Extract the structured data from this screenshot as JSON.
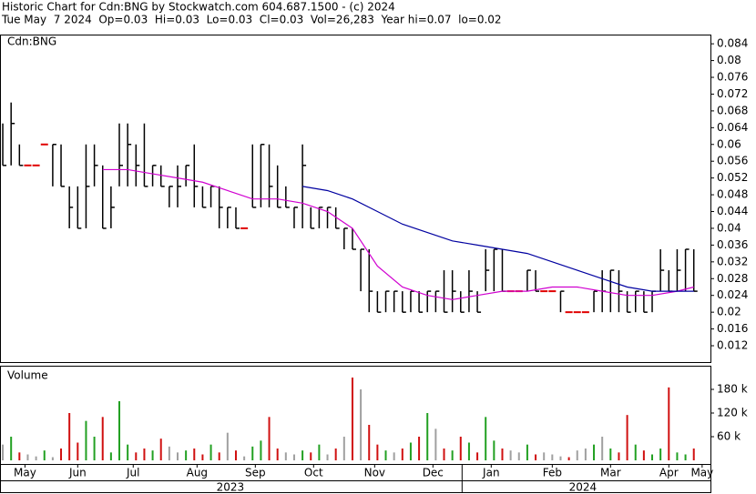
{
  "header": {
    "line1": "Historic Chart for Cdn:BNG by Stockwatch.com 604.687.1500 - (c) 2024",
    "line2": "Tue May  7 2024  Op=0.03  Hi=0.03  Lo=0.03  Cl=0.03  Vol=26,283  Year hi=0.07  lo=0.02"
  },
  "chart_data": [
    {
      "type": "hlc",
      "title": "Cdn:BNG",
      "x": [
        0,
        3,
        6,
        9,
        12,
        15,
        18,
        21,
        24,
        27,
        30,
        33,
        36,
        39,
        42,
        45,
        48,
        51,
        54,
        57,
        60,
        63,
        66,
        69,
        72,
        75,
        78,
        81,
        84,
        87,
        90,
        93,
        96,
        99,
        102,
        105,
        108,
        111,
        114,
        117,
        120,
        123,
        126,
        129,
        132,
        135,
        138,
        141,
        144,
        147,
        150,
        153,
        156,
        159,
        162,
        165,
        168,
        171,
        174,
        177,
        180,
        183,
        186,
        189,
        192,
        195,
        198,
        201,
        204,
        207,
        210,
        213,
        216,
        219,
        222,
        225,
        228,
        231,
        234,
        237,
        240,
        243,
        246,
        249
      ],
      "high": [
        0.065,
        0.07,
        0.06,
        0.055,
        0.055,
        0.06,
        0.06,
        0.06,
        0.05,
        0.05,
        0.06,
        0.06,
        0.055,
        0.05,
        0.065,
        0.065,
        0.06,
        0.065,
        0.055,
        0.055,
        0.05,
        0.055,
        0.055,
        0.06,
        0.05,
        0.05,
        0.05,
        0.045,
        0.045,
        0.04,
        0.06,
        0.06,
        0.06,
        0.055,
        0.05,
        0.045,
        0.06,
        0.045,
        0.045,
        0.045,
        0.045,
        0.04,
        0.04,
        0.035,
        0.035,
        0.025,
        0.025,
        0.025,
        0.025,
        0.025,
        0.025,
        0.025,
        0.025,
        0.03,
        0.03,
        0.025,
        0.03,
        0.025,
        0.035,
        0.035,
        0.035,
        0.025,
        0.025,
        0.03,
        0.03,
        0.025,
        0.025,
        0.025,
        0.02,
        0.02,
        0.02,
        0.025,
        0.03,
        0.03,
        0.03,
        0.025,
        0.025,
        0.025,
        0.025,
        0.035,
        0.03,
        0.035,
        0.035,
        0.035
      ],
      "low": [
        0.055,
        0.055,
        0.055,
        0.055,
        0.055,
        0.06,
        0.05,
        0.05,
        0.04,
        0.04,
        0.04,
        0.05,
        0.04,
        0.04,
        0.05,
        0.05,
        0.05,
        0.05,
        0.05,
        0.05,
        0.045,
        0.045,
        0.05,
        0.045,
        0.045,
        0.045,
        0.04,
        0.04,
        0.04,
        0.04,
        0.045,
        0.045,
        0.045,
        0.045,
        0.045,
        0.04,
        0.04,
        0.04,
        0.04,
        0.04,
        0.04,
        0.035,
        0.035,
        0.025,
        0.02,
        0.02,
        0.02,
        0.02,
        0.02,
        0.02,
        0.02,
        0.02,
        0.02,
        0.02,
        0.02,
        0.02,
        0.02,
        0.02,
        0.025,
        0.025,
        0.025,
        0.025,
        0.025,
        0.025,
        0.025,
        0.025,
        0.025,
        0.02,
        0.02,
        0.02,
        0.02,
        0.02,
        0.02,
        0.02,
        0.02,
        0.02,
        0.02,
        0.02,
        0.02,
        0.025,
        0.025,
        0.025,
        0.025,
        0.025
      ],
      "close": [
        0.055,
        0.065,
        0.055,
        0.055,
        0.055,
        0.06,
        0.06,
        0.05,
        0.045,
        0.04,
        0.05,
        0.055,
        0.04,
        0.045,
        0.055,
        0.06,
        0.055,
        0.05,
        0.055,
        0.05,
        0.05,
        0.05,
        0.055,
        0.05,
        0.045,
        0.05,
        0.045,
        0.045,
        0.04,
        0.04,
        0.045,
        0.06,
        0.05,
        0.045,
        0.045,
        0.045,
        0.055,
        0.04,
        0.045,
        0.045,
        0.04,
        0.04,
        0.035,
        0.035,
        0.025,
        0.02,
        0.025,
        0.025,
        0.02,
        0.025,
        0.02,
        0.025,
        0.025,
        0.02,
        0.025,
        0.02,
        0.025,
        0.02,
        0.03,
        0.035,
        0.025,
        0.025,
        0.025,
        0.03,
        0.025,
        0.025,
        0.025,
        0.025,
        0.02,
        0.02,
        0.02,
        0.025,
        0.025,
        0.03,
        0.025,
        0.02,
        0.025,
        0.02,
        0.025,
        0.03,
        0.025,
        0.03,
        0.035,
        0.025
      ],
      "bar_color": "#000000",
      "flat_color": "#e00000",
      "moving_averages": [
        {
          "color": "#d000d0",
          "x": [
            36,
            45,
            54,
            63,
            72,
            81,
            90,
            99,
            108,
            117,
            126,
            135,
            144,
            153,
            162,
            171,
            180,
            189,
            198,
            207,
            216,
            225,
            234,
            243,
            249
          ],
          "values": [
            0.054,
            0.054,
            0.053,
            0.052,
            0.051,
            0.049,
            0.047,
            0.047,
            0.046,
            0.044,
            0.04,
            0.031,
            0.026,
            0.024,
            0.023,
            0.024,
            0.025,
            0.025,
            0.026,
            0.026,
            0.025,
            0.024,
            0.024,
            0.025,
            0.026
          ]
        },
        {
          "color": "#0000a0",
          "x": [
            108,
            117,
            126,
            135,
            144,
            153,
            162,
            171,
            180,
            189,
            198,
            207,
            216,
            225,
            234,
            243,
            249
          ],
          "values": [
            0.05,
            0.049,
            0.047,
            0.044,
            0.041,
            0.039,
            0.037,
            0.036,
            0.035,
            0.034,
            0.032,
            0.03,
            0.028,
            0.026,
            0.025,
            0.025,
            0.025
          ]
        }
      ],
      "xlim": [
        -1,
        255
      ],
      "ylim": [
        0.0081,
        0.0862
      ],
      "yticks": [
        0.012,
        0.016,
        0.02,
        0.024,
        0.028,
        0.032,
        0.036,
        0.04,
        0.044,
        0.048,
        0.052,
        0.056,
        0.06,
        0.064,
        0.068,
        0.072,
        0.076,
        0.08,
        0.084
      ]
    },
    {
      "type": "volume",
      "title": "Volume",
      "x": [
        0,
        3,
        6,
        9,
        12,
        15,
        18,
        21,
        24,
        27,
        30,
        33,
        36,
        39,
        42,
        45,
        48,
        51,
        54,
        57,
        60,
        63,
        66,
        69,
        72,
        75,
        78,
        81,
        84,
        87,
        90,
        93,
        96,
        99,
        102,
        105,
        108,
        111,
        114,
        117,
        120,
        123,
        126,
        129,
        132,
        135,
        138,
        141,
        144,
        147,
        150,
        153,
        156,
        159,
        162,
        165,
        168,
        171,
        174,
        177,
        180,
        183,
        186,
        189,
        192,
        195,
        198,
        201,
        204,
        207,
        210,
        213,
        216,
        219,
        222,
        225,
        228,
        231,
        234,
        237,
        240,
        243,
        246,
        249
      ],
      "values": [
        40000,
        60000,
        20000,
        15000,
        10000,
        25000,
        8000,
        30000,
        120000,
        45000,
        100000,
        60000,
        110000,
        20000,
        150000,
        40000,
        20000,
        30000,
        25000,
        55000,
        35000,
        20000,
        25000,
        30000,
        15000,
        40000,
        20000,
        70000,
        25000,
        10000,
        35000,
        50000,
        110000,
        30000,
        20000,
        15000,
        25000,
        20000,
        40000,
        15000,
        30000,
        60000,
        210000,
        180000,
        90000,
        40000,
        25000,
        20000,
        30000,
        45000,
        60000,
        120000,
        80000,
        30000,
        25000,
        60000,
        45000,
        20000,
        110000,
        50000,
        30000,
        25000,
        20000,
        40000,
        15000,
        20000,
        15000,
        10000,
        8000,
        25000,
        30000,
        40000,
        60000,
        30000,
        20000,
        115000,
        40000,
        25000,
        15000,
        30000,
        185000,
        20000,
        15000,
        30000
      ],
      "up_color": "#22a022",
      "down_color": "#d01010",
      "flat_color": "#a0a0a0",
      "xlim": [
        -1,
        255
      ],
      "ylim": [
        0,
        240000
      ],
      "yticks": [
        {
          "value": 60000,
          "label": "60 k"
        },
        {
          "value": 120000,
          "label": "120 k"
        },
        {
          "value": 180000,
          "label": "180 k"
        }
      ],
      "xticks": [
        {
          "value": 8,
          "label": "May"
        },
        {
          "value": 27,
          "label": "Jun"
        },
        {
          "value": 47,
          "label": "Jul"
        },
        {
          "value": 70,
          "label": "Aug"
        },
        {
          "value": 91,
          "label": "Sep"
        },
        {
          "value": 112,
          "label": "Oct"
        },
        {
          "value": 134,
          "label": "Nov"
        },
        {
          "value": 155,
          "label": "Dec"
        },
        {
          "value": 176,
          "label": "Jan"
        },
        {
          "value": 198,
          "label": "Feb"
        },
        {
          "value": 219,
          "label": "Mar"
        },
        {
          "value": 240,
          "label": "Apr"
        },
        {
          "value": 252,
          "label": "May"
        }
      ],
      "year_ticks": [
        {
          "value": 82,
          "label": "2023"
        },
        {
          "value": 209,
          "label": "2024"
        }
      ]
    }
  ]
}
